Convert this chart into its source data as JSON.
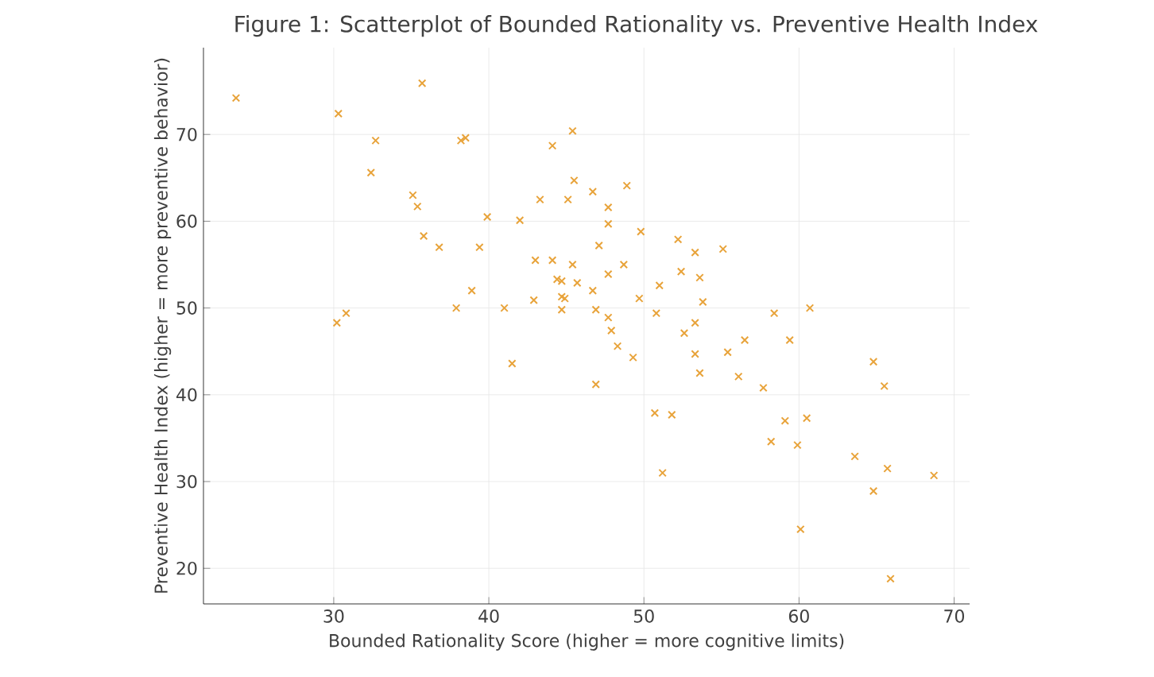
{
  "chart_data": {
    "type": "scatter",
    "title": "Figure 1: Scatterplot of Bounded Rationality vs. Preventive Health Index",
    "xlabel": "Bounded Rationality Score (higher = more cognitive limits)",
    "ylabel": "Preventive Health Index (higher = more preventive behavior)",
    "xlim": [
      21.6,
      71
    ],
    "ylim": [
      15.9,
      80
    ],
    "xticks": [
      30,
      40,
      50,
      60,
      70
    ],
    "yticks": [
      20,
      30,
      40,
      50,
      60,
      70
    ],
    "grid": true,
    "marker": "cross",
    "series": [
      {
        "color": "#e8a33a",
        "x": [
          23.7,
          30.3,
          35.7,
          32.7,
          32.4,
          38.2,
          38.5,
          44.1,
          45.4,
          35.1,
          35.4,
          39.9,
          42.0,
          35.8,
          36.8,
          39.4,
          45.5,
          43.3,
          45.1,
          43.0,
          44.1,
          45.4,
          44.4,
          38.9,
          37.9,
          41.0,
          42.9,
          44.9,
          30.2,
          30.8,
          44.7,
          46.7,
          48.9,
          47.7,
          47.7,
          49.8,
          52.2,
          53.3,
          55.1,
          47.1,
          48.7,
          47.7,
          44.7,
          45.7,
          46.7,
          44.7,
          52.4,
          53.6,
          51.0,
          49.7,
          53.8,
          50.8,
          46.9,
          47.7,
          58.4,
          60.7,
          52.6,
          53.3,
          56.5,
          59.4,
          47.9,
          48.3,
          49.3,
          46.9,
          53.3,
          53.6,
          55.4,
          56.1,
          57.7,
          64.8,
          65.5,
          50.7,
          51.8,
          59.1,
          60.5,
          58.2,
          59.9,
          63.6,
          65.7,
          68.7,
          64.8,
          51.2,
          60.1,
          65.9,
          41.5
        ],
        "values": [
          74.2,
          72.4,
          75.9,
          69.3,
          65.6,
          69.3,
          69.6,
          68.7,
          70.4,
          63.0,
          61.7,
          60.5,
          60.1,
          58.3,
          57.0,
          57.0,
          64.7,
          62.5,
          62.5,
          55.5,
          55.5,
          55.0,
          53.3,
          52.0,
          50.0,
          50.0,
          50.9,
          51.1,
          48.3,
          49.4,
          49.8,
          63.4,
          64.1,
          61.6,
          59.7,
          58.8,
          57.9,
          56.4,
          56.8,
          57.2,
          55.0,
          53.9,
          53.1,
          52.9,
          52.0,
          51.3,
          54.2,
          53.5,
          52.6,
          51.1,
          50.7,
          49.4,
          49.8,
          48.9,
          49.4,
          50.0,
          47.1,
          48.3,
          46.3,
          46.3,
          47.4,
          45.6,
          44.3,
          41.2,
          44.7,
          42.5,
          44.9,
          42.1,
          40.8,
          43.8,
          41.0,
          37.9,
          37.7,
          37.0,
          37.3,
          34.6,
          34.2,
          32.9,
          31.5,
          30.7,
          28.9,
          31.0,
          24.5,
          18.8,
          43.6
        ]
      }
    ]
  }
}
